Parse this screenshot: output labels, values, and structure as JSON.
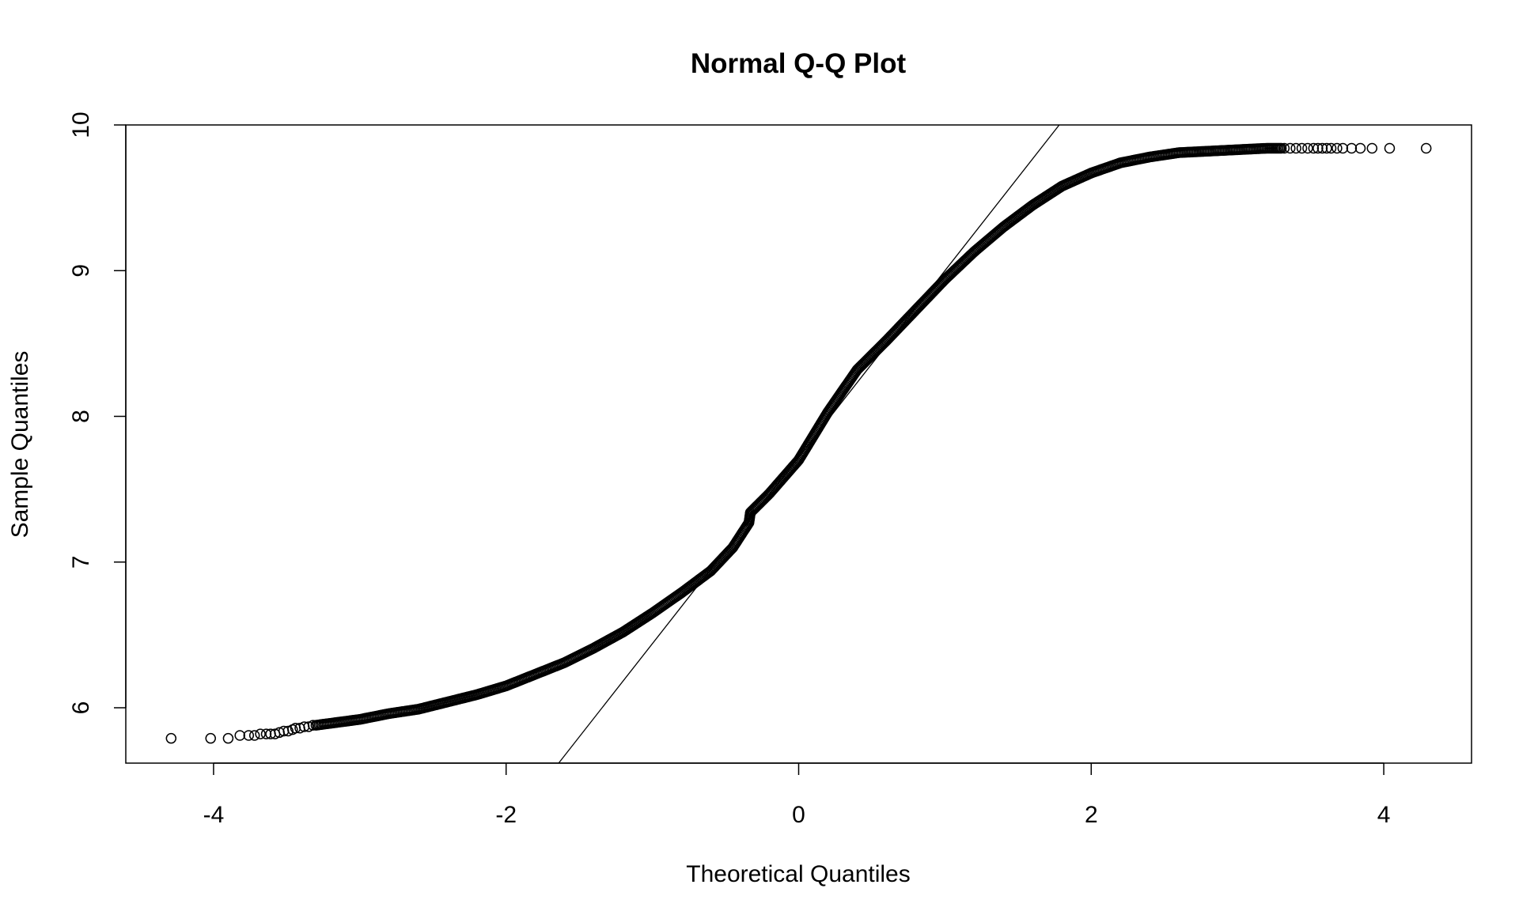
{
  "chart_data": {
    "type": "scatter",
    "title": "Normal Q-Q Plot",
    "xlabel": "Theoretical Quantiles",
    "ylabel": "Sample Quantiles",
    "xlim": [
      -4.6,
      4.6
    ],
    "ylim": [
      5.62,
      10.0
    ],
    "xticks": [
      -4,
      -2,
      0,
      2,
      4
    ],
    "xtick_labels": [
      "-4",
      "-2",
      "0",
      "2",
      "4"
    ],
    "yticks": [
      6,
      7,
      8,
      9,
      10
    ],
    "ytick_labels": [
      "6",
      "7",
      "8",
      "9",
      "10"
    ],
    "grid": false,
    "marker": "open-circle",
    "colors": {
      "points": "#000000",
      "line": "#000000",
      "box": "#000000"
    },
    "reference_line": {
      "slope": 1.28,
      "intercept": 7.72
    },
    "series": [
      {
        "points": [
          [
            -4.29,
            5.79
          ],
          [
            -4.02,
            5.79
          ],
          [
            -3.9,
            5.79
          ],
          [
            -3.82,
            5.81
          ],
          [
            -3.76,
            5.81
          ],
          [
            -3.72,
            5.81
          ],
          [
            -3.68,
            5.82
          ],
          [
            -3.64,
            5.82
          ],
          [
            -3.61,
            5.82
          ],
          [
            -3.58,
            5.82
          ],
          [
            -3.55,
            5.83
          ],
          [
            -3.52,
            5.84
          ],
          [
            -3.49,
            5.84
          ],
          [
            -3.46,
            5.85
          ],
          [
            -3.44,
            5.86
          ],
          [
            -3.41,
            5.86
          ],
          [
            -3.38,
            5.87
          ],
          [
            -3.35,
            5.87
          ],
          [
            -3.32,
            5.88
          ]
        ]
      },
      {
        "points": [
          [
            -3.3,
            5.88
          ],
          [
            -3.0,
            5.92
          ],
          [
            -2.8,
            5.96
          ],
          [
            -2.6,
            5.99
          ],
          [
            -2.4,
            6.04
          ],
          [
            -2.2,
            6.09
          ],
          [
            -2.0,
            6.15
          ],
          [
            -1.8,
            6.23
          ],
          [
            -1.6,
            6.31
          ],
          [
            -1.4,
            6.41
          ],
          [
            -1.2,
            6.52
          ],
          [
            -1.0,
            6.65
          ],
          [
            -0.8,
            6.79
          ],
          [
            -0.6,
            6.94
          ],
          [
            -0.45,
            7.1
          ],
          [
            -0.34,
            7.27
          ],
          [
            -0.33,
            7.34
          ],
          [
            -0.2,
            7.47
          ],
          [
            0.0,
            7.7
          ],
          [
            0.2,
            8.03
          ],
          [
            0.4,
            8.32
          ],
          [
            0.6,
            8.52
          ],
          [
            0.8,
            8.73
          ],
          [
            1.0,
            8.94
          ],
          [
            1.2,
            9.13
          ],
          [
            1.4,
            9.3
          ],
          [
            1.6,
            9.45
          ],
          [
            1.8,
            9.58
          ],
          [
            2.0,
            9.67
          ],
          [
            2.2,
            9.74
          ],
          [
            2.4,
            9.78
          ],
          [
            2.6,
            9.81
          ],
          [
            2.8,
            9.82
          ],
          [
            3.0,
            9.83
          ],
          [
            3.2,
            9.84
          ],
          [
            3.3,
            9.84
          ]
        ]
      },
      {
        "points": [
          [
            3.32,
            9.84
          ],
          [
            3.36,
            9.84
          ],
          [
            3.4,
            9.84
          ],
          [
            3.44,
            9.84
          ],
          [
            3.48,
            9.84
          ],
          [
            3.52,
            9.84
          ],
          [
            3.55,
            9.84
          ],
          [
            3.58,
            9.84
          ],
          [
            3.61,
            9.84
          ],
          [
            3.64,
            9.84
          ],
          [
            3.68,
            9.84
          ],
          [
            3.72,
            9.84
          ],
          [
            3.78,
            9.84
          ],
          [
            3.84,
            9.84
          ],
          [
            3.92,
            9.84
          ],
          [
            4.04,
            9.84
          ],
          [
            4.29,
            9.84
          ]
        ]
      }
    ]
  }
}
